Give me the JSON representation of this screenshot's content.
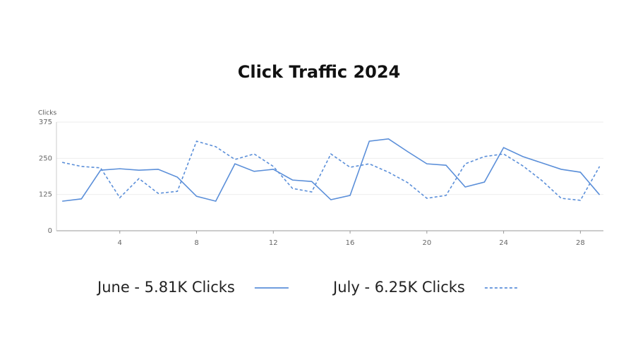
{
  "chart_data": {
    "type": "line",
    "title": "Click Traffic 2024",
    "y_label": "Clicks",
    "x": [
      1,
      2,
      3,
      4,
      5,
      6,
      7,
      8,
      9,
      10,
      11,
      12,
      13,
      14,
      15,
      16,
      17,
      18,
      19,
      20,
      21,
      22,
      23,
      24,
      25,
      26,
      27,
      28,
      29
    ],
    "series": [
      {
        "name": "June - 5.81K Clicks",
        "color": "#5b8fd9",
        "line_style": "solid",
        "values": [
          102,
          110,
          209,
          214,
          209,
          212,
          185,
          119,
          102,
          231,
          205,
          212,
          175,
          170,
          107,
          122,
          309,
          317,
          273,
          231,
          226,
          151,
          168,
          287,
          256,
          234,
          212,
          202,
          124
        ]
      },
      {
        "name": "July - 6.25K Clicks",
        "color": "#5b8fd9",
        "line_style": "dashed",
        "values": [
          236,
          222,
          217,
          114,
          180,
          129,
          136,
          309,
          290,
          246,
          265,
          222,
          146,
          134,
          265,
          219,
          231,
          202,
          166,
          112,
          122,
          231,
          256,
          265,
          224,
          173,
          112,
          105,
          222
        ]
      }
    ],
    "xlim": [
      0.7,
      29.2
    ],
    "xticks": [
      4,
      8,
      12,
      16,
      20,
      24,
      28
    ],
    "ylim": [
      0,
      375
    ],
    "yticks": [
      0,
      125,
      250,
      375
    ],
    "grid": true,
    "legend": "bottom"
  }
}
